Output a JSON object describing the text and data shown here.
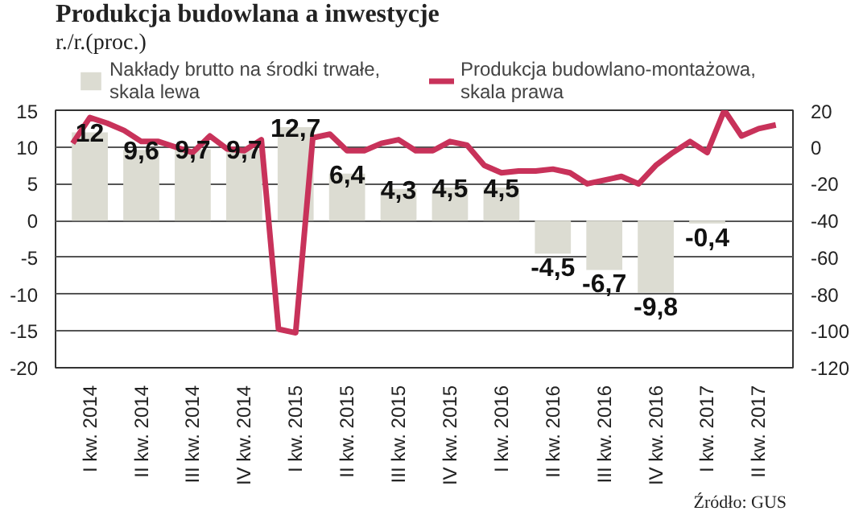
{
  "chart_data": {
    "type": "bar",
    "title": "Produkcja budowlana a inwestycje",
    "subtitle": "r./r.(proc.)",
    "x": [
      "2014-02",
      "2014-05",
      "2014-08",
      "2014-11",
      "2015-02",
      "2015-05",
      "2015-08",
      "2015-11",
      "2016-02",
      "2016-05",
      "2016-08",
      "2016-11",
      "2017-02"
    ],
    "xlim": [
      "2013-12",
      "2017-07"
    ],
    "xticks": [
      {
        "value": "2014-02",
        "label": "I kw. 2014"
      },
      {
        "value": "2014-05",
        "label": "II kw. 2014"
      },
      {
        "value": "2014-08",
        "label": "III kw. 2014"
      },
      {
        "value": "2014-11",
        "label": "IV kw. 2014"
      },
      {
        "value": "2015-02",
        "label": "I kw. 2015"
      },
      {
        "value": "2015-05",
        "label": "II kw. 2015"
      },
      {
        "value": "2015-08",
        "label": "III kw. 2015"
      },
      {
        "value": "2015-11",
        "label": "IV kw. 2015"
      },
      {
        "value": "2016-02",
        "label": "I kw. 2016"
      },
      {
        "value": "2016-05",
        "label": "II kw. 2016"
      },
      {
        "value": "2016-08",
        "label": "III kw. 2016"
      },
      {
        "value": "2016-11",
        "label": "IV kw. 2016"
      },
      {
        "value": "2017-02",
        "label": "I kw. 2017"
      },
      {
        "value": "2017-05",
        "label": "II kw. 2017"
      }
    ],
    "series": [
      {
        "name": "Nakłady brutto na środki trwałe,\nskala lewa",
        "color": "#dcdcd2",
        "values": [
          12,
          9.6,
          9.7,
          9.7,
          12.7,
          6.4,
          4.3,
          4.5,
          4.5,
          -4.5,
          -6.7,
          -9.8,
          -0.4
        ],
        "value_labels": [
          "12",
          "9,6",
          "9,7",
          "9,7",
          "12,7",
          "6,4",
          "4,3",
          "4,5",
          "4,5",
          "-4,5",
          "-6,7",
          "-9,8",
          "-0,4"
        ]
      },
      {
        "name": "Produkcja budowlano-montażowa,\nskala prawa",
        "type": "line",
        "axis": "y2",
        "color": "#c8325a",
        "x": [
          "2014-01",
          "2014-02",
          "2014-03",
          "2014-04",
          "2014-05",
          "2014-06",
          "2014-07",
          "2014-08",
          "2014-09",
          "2014-10",
          "2014-11",
          "2014-12",
          "2015-01",
          "2015-02",
          "2015-03",
          "2015-04",
          "2015-05",
          "2015-06",
          "2015-07",
          "2015-08",
          "2015-09",
          "2015-10",
          "2015-11",
          "2015-12",
          "2016-01",
          "2016-02",
          "2016-03",
          "2016-04",
          "2016-05",
          "2016-06",
          "2016-07",
          "2016-08",
          "2016-09",
          "2016-10",
          "2016-11",
          "2016-12",
          "2017-01",
          "2017-02",
          "2017-03",
          "2017-04",
          "2017-05",
          "2017-06"
        ],
        "values": [
          2,
          16,
          13,
          9,
          3,
          3,
          0,
          -3,
          6,
          -1,
          -2,
          4,
          -99,
          -101,
          5,
          7,
          -2,
          -2,
          2,
          4,
          -2,
          -2,
          3,
          1,
          -10,
          -14,
          -13,
          -13,
          -12,
          -14,
          -20,
          -18,
          -16,
          -20,
          -10,
          -3,
          3,
          -3,
          20,
          6,
          10,
          12
        ]
      }
    ],
    "ylim": [
      -20,
      15
    ],
    "yticks": [
      -20,
      -15,
      -10,
      -5,
      0,
      5,
      10,
      15
    ],
    "y2lim": [
      -120,
      20
    ],
    "y2ticks": [
      -120,
      -100,
      -80,
      -60,
      -40,
      -20,
      0,
      20
    ],
    "grid": "y",
    "legend": "top",
    "annotations": [
      "Źródło: GUS"
    ]
  }
}
